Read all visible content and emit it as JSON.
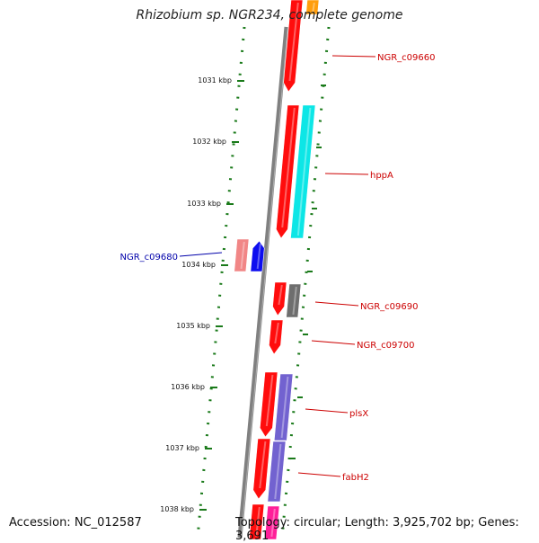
{
  "title": "Rhizobium sp. NGR234, complete genome",
  "footer": {
    "accession": "Accession: NC_012587",
    "topology": "Topology: circular; Length: 3,925,702 bp; Genes: 3,691"
  },
  "colors": {
    "backbone": "#808080",
    "dots": "#1a7a1a",
    "cds_forward": "#ff0000",
    "label_red": "#cc0000",
    "label_blue": "#0000aa"
  },
  "ticks": [
    "1031 kbp",
    "1032 kbp",
    "1033 kbp",
    "1034 kbp",
    "1035 kbp",
    "1036 kbp",
    "1037 kbp",
    "1038 kbp"
  ],
  "gene_labels": [
    {
      "name": "NGR_c09660",
      "color": "#cc0000"
    },
    {
      "name": "hppA",
      "color": "#cc0000"
    },
    {
      "name": "NGR_c09680",
      "color": "#0000aa"
    },
    {
      "name": "NGR_c09690",
      "color": "#cc0000"
    },
    {
      "name": "NGR_c09700",
      "color": "#cc0000"
    },
    {
      "name": "plsX",
      "color": "#cc0000"
    },
    {
      "name": "fabH2",
      "color": "#cc0000"
    }
  ],
  "features": [
    {
      "name": "cds-NGR_c09660",
      "color": "#ff0000"
    },
    {
      "name": "cds-orange-top",
      "color": "#ff9900"
    },
    {
      "name": "cds-hppA-red",
      "color": "#ff0000"
    },
    {
      "name": "cds-hppA-cyan",
      "color": "#00e5e5"
    },
    {
      "name": "cds-NGR_c09680-pink",
      "color": "#f08080"
    },
    {
      "name": "cds-NGR_c09680-blue",
      "color": "#0000ee"
    },
    {
      "name": "cds-NGR_c09690-red",
      "color": "#ff0000"
    },
    {
      "name": "cds-NGR_c09690-gray",
      "color": "#666666"
    },
    {
      "name": "cds-NGR_c09700",
      "color": "#ff0000"
    },
    {
      "name": "cds-plsX-red",
      "color": "#ff0000"
    },
    {
      "name": "cds-plsX-purple",
      "color": "#6a5acd"
    },
    {
      "name": "cds-fabH2-red",
      "color": "#ff0000"
    },
    {
      "name": "cds-fabH2-purple",
      "color": "#6a5acd"
    },
    {
      "name": "cds-bottom-red",
      "color": "#ff0000"
    },
    {
      "name": "cds-bottom-magenta",
      "color": "#ff1493"
    }
  ]
}
